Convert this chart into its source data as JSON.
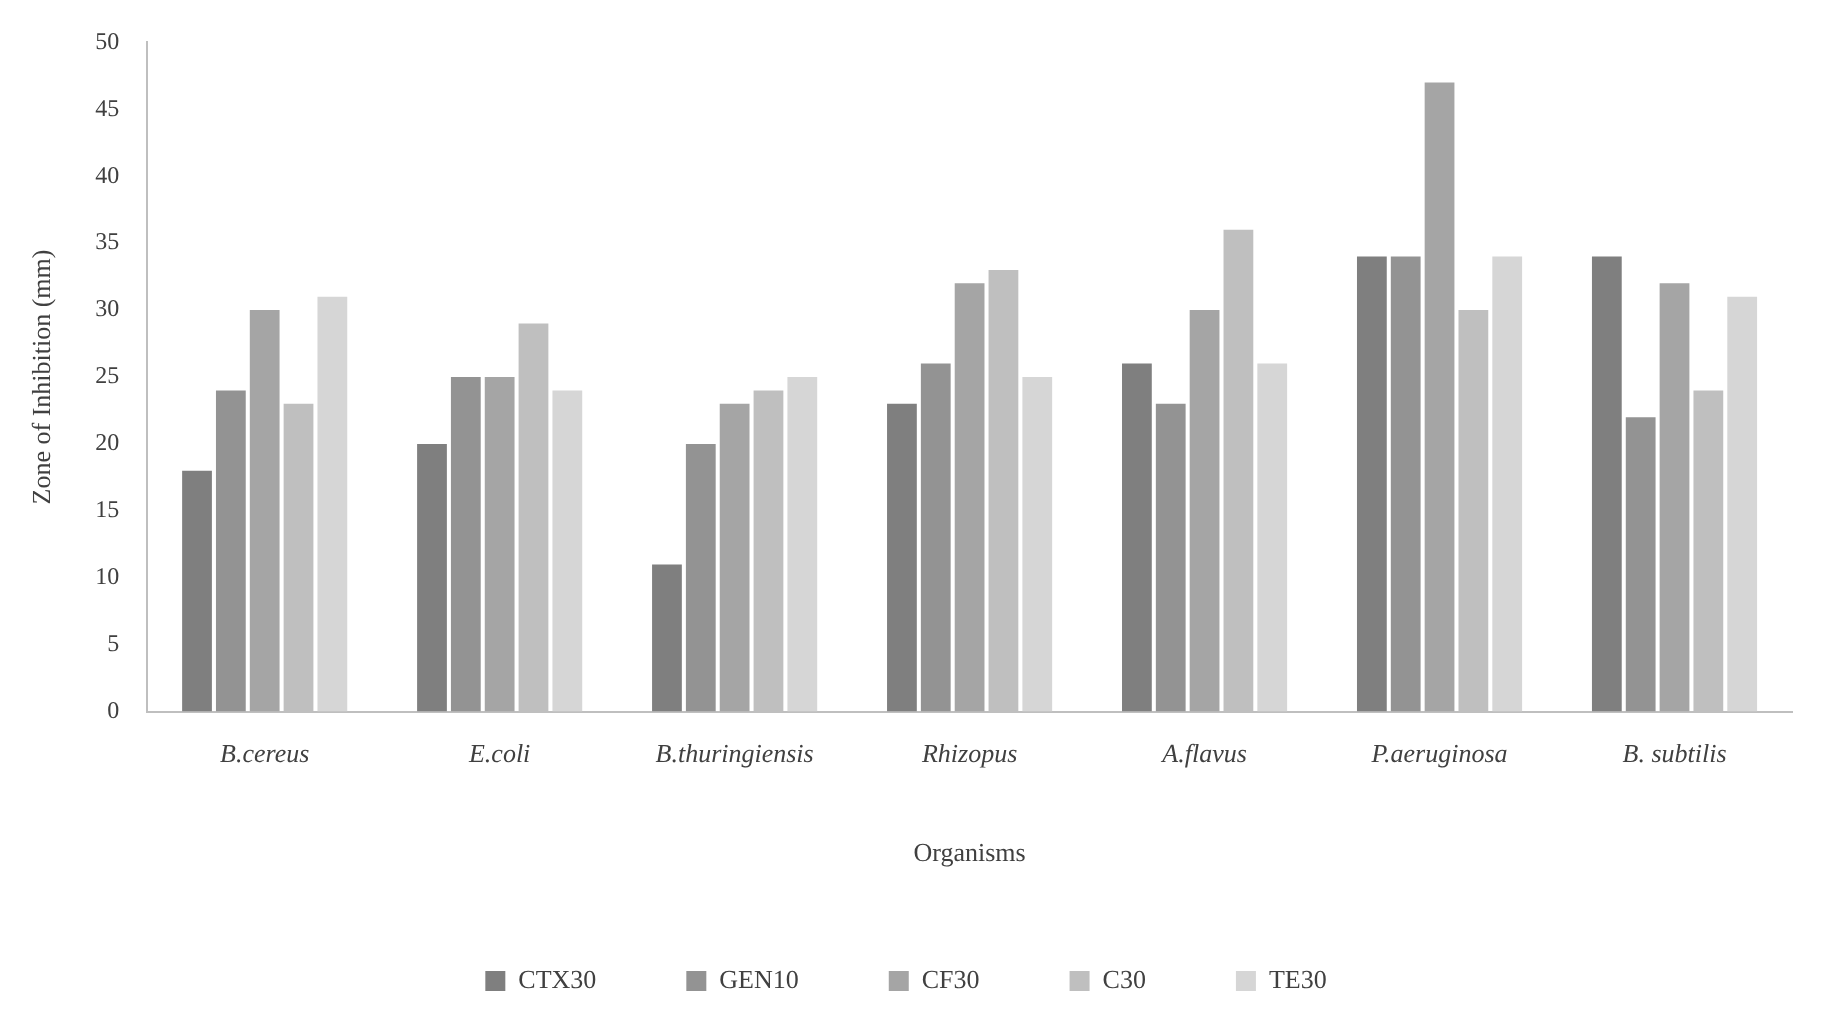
{
  "chart_data": {
    "type": "bar",
    "xlabel": "Organisms",
    "ylabel": "Zone of Inhibition (mm)",
    "categories": [
      "B.cereus",
      "E.coli",
      "B.thuringiensis",
      "Rhizopus",
      "A.flavus",
      "P.aeruginosa",
      "B. subtilis"
    ],
    "series": [
      {
        "name": "CTX30",
        "color": "#7f7f7f",
        "values": [
          18,
          20,
          11,
          23,
          26,
          34,
          34
        ]
      },
      {
        "name": "GEN10",
        "color": "#939393",
        "values": [
          24,
          25,
          20,
          26,
          23,
          34,
          22
        ]
      },
      {
        "name": "CF30",
        "color": "#a5a5a5",
        "values": [
          30,
          25,
          23,
          32,
          30,
          47,
          32
        ]
      },
      {
        "name": "C30",
        "color": "#bfbfbf",
        "values": [
          23,
          29,
          24,
          33,
          36,
          30,
          24
        ]
      },
      {
        "name": "TE30",
        "color": "#d6d6d6",
        "values": [
          31,
          24,
          25,
          25,
          26,
          34,
          31
        ]
      }
    ],
    "ylim": [
      0,
      50
    ],
    "yticks": [
      0,
      5,
      10,
      15,
      20,
      25,
      30,
      35,
      40,
      45,
      50
    ],
    "grid": false,
    "legend": "bottom"
  }
}
